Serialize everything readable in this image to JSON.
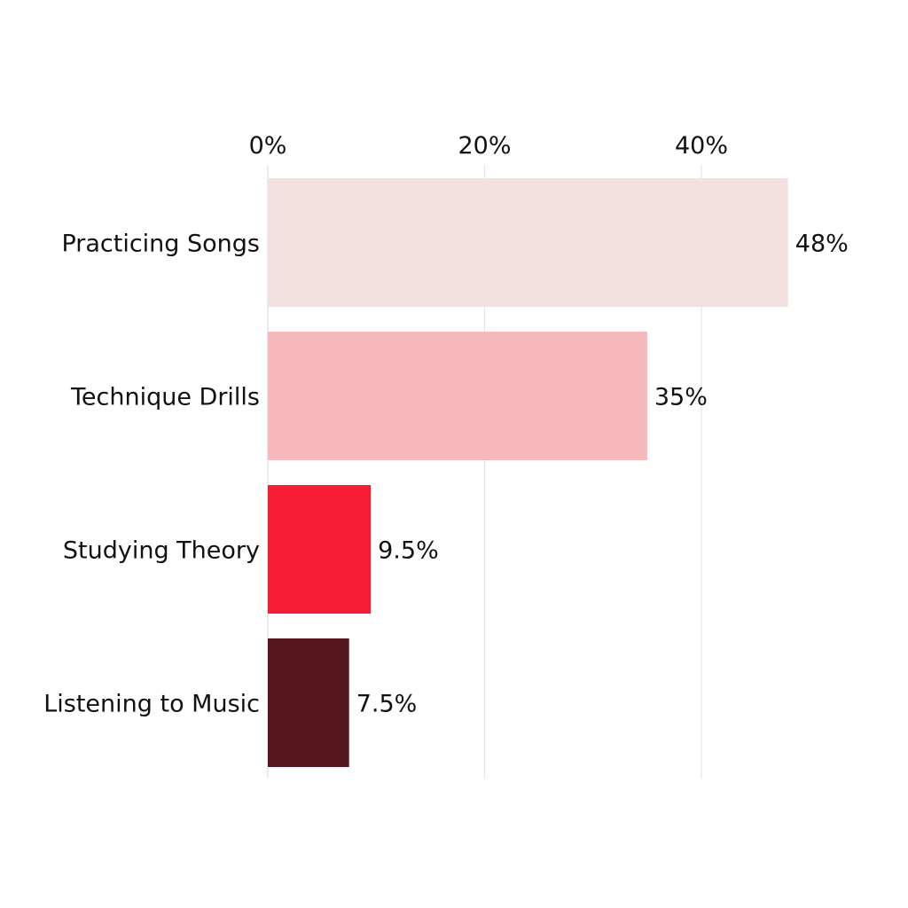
{
  "chart_data": {
    "type": "bar",
    "orientation": "horizontal",
    "categories": [
      "Practicing Songs",
      "Technique Drills",
      "Studying Theory",
      "Listening to Music"
    ],
    "values": [
      48,
      35,
      9.5,
      7.5
    ],
    "data_labels": [
      "48%",
      "35%",
      "9.5%",
      "7.5%"
    ],
    "colors": [
      "#f3e1e2",
      "#f7b8bc",
      "#f61c33",
      "#55171d"
    ],
    "xticks": [
      0,
      20,
      40
    ],
    "xtick_labels": [
      "0%",
      "20%",
      "40%"
    ],
    "xaxis_position": "top",
    "xlim": [
      0,
      48
    ],
    "grid": true,
    "title": "",
    "xlabel": "",
    "ylabel": ""
  }
}
